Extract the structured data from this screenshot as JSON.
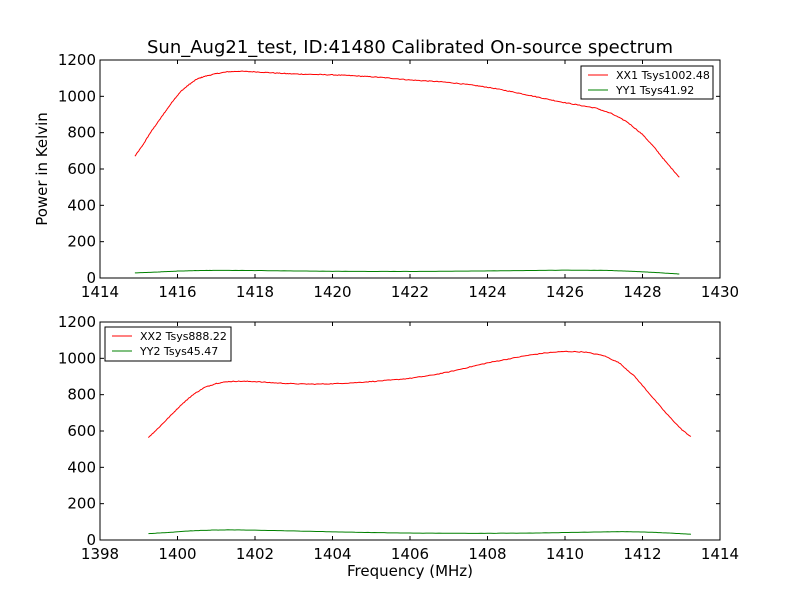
{
  "title": "Sun_Aug21_test, ID:41480 Calibrated On-source spectrum",
  "chart_data": [
    {
      "type": "line",
      "title": "Sun_Aug21_test, ID:41480 Calibrated On-source spectrum",
      "xlabel": "",
      "ylabel": "Power in Kelvin",
      "xlim": [
        1414,
        1430
      ],
      "ylim": [
        0,
        1200
      ],
      "xticks": [
        1414,
        1416,
        1418,
        1420,
        1422,
        1424,
        1426,
        1428,
        1430
      ],
      "yticks": [
        0,
        200,
        400,
        600,
        800,
        1000,
        1200
      ],
      "grid": false,
      "legend": "top-right",
      "series": [
        {
          "name": "XX1 Tsys1002.48",
          "color": "#ff0000",
          "x": [
            1414.9,
            1415.1,
            1415.3,
            1415.5,
            1415.7,
            1415.9,
            1416.1,
            1416.3,
            1416.5,
            1416.7,
            1417.0,
            1417.3,
            1417.6,
            1418.0,
            1418.4,
            1418.8,
            1419.2,
            1419.6,
            1420.0,
            1420.4,
            1420.8,
            1421.2,
            1421.6,
            1422.0,
            1422.4,
            1422.8,
            1423.2,
            1423.6,
            1424.0,
            1424.4,
            1424.8,
            1425.2,
            1425.6,
            1426.0,
            1426.4,
            1426.8,
            1427.2,
            1427.6,
            1428.0,
            1428.3,
            1428.6,
            1428.95
          ],
          "y": [
            670,
            730,
            800,
            860,
            920,
            980,
            1030,
            1065,
            1095,
            1110,
            1125,
            1135,
            1138,
            1135,
            1130,
            1125,
            1122,
            1120,
            1118,
            1115,
            1110,
            1105,
            1098,
            1090,
            1085,
            1080,
            1072,
            1062,
            1050,
            1035,
            1018,
            1000,
            982,
            965,
            950,
            935,
            905,
            860,
            790,
            720,
            640,
            555
          ]
        },
        {
          "name": "YY1 Tsys41.92",
          "color": "#008000",
          "x": [
            1414.9,
            1415.5,
            1416.0,
            1416.5,
            1417.0,
            1418.0,
            1419.0,
            1420.0,
            1421.0,
            1422.0,
            1423.0,
            1424.0,
            1425.0,
            1426.0,
            1427.0,
            1427.5,
            1428.0,
            1428.5,
            1428.95
          ],
          "y": [
            28,
            33,
            38,
            41,
            42,
            41,
            39,
            37,
            36,
            36,
            37,
            39,
            41,
            43,
            42,
            39,
            34,
            28,
            22
          ]
        }
      ]
    },
    {
      "type": "line",
      "title": "",
      "xlabel": "Frequency (MHz)",
      "ylabel": "",
      "xlim": [
        1398,
        1414
      ],
      "ylim": [
        0,
        1200
      ],
      "xticks": [
        1398,
        1400,
        1402,
        1404,
        1406,
        1408,
        1410,
        1412,
        1414
      ],
      "yticks": [
        0,
        200,
        400,
        600,
        800,
        1000,
        1200
      ],
      "grid": false,
      "legend": "top-left",
      "series": [
        {
          "name": "XX2 Tsys888.22",
          "color": "#ff0000",
          "x": [
            1399.25,
            1399.5,
            1399.8,
            1400.1,
            1400.4,
            1400.7,
            1401.0,
            1401.3,
            1401.6,
            1402.0,
            1402.5,
            1403.0,
            1403.5,
            1404.0,
            1404.5,
            1405.0,
            1405.5,
            1406.0,
            1406.5,
            1407.0,
            1407.5,
            1408.0,
            1408.5,
            1409.0,
            1409.5,
            1410.0,
            1410.5,
            1411.0,
            1411.4,
            1411.8,
            1412.2,
            1412.6,
            1413.0,
            1413.25
          ],
          "y": [
            565,
            615,
            680,
            745,
            800,
            840,
            862,
            872,
            874,
            872,
            865,
            860,
            858,
            860,
            865,
            872,
            880,
            890,
            905,
            925,
            950,
            975,
            995,
            1015,
            1030,
            1038,
            1035,
            1015,
            975,
            900,
            800,
            700,
            610,
            568
          ]
        },
        {
          "name": "YY2 Tsys45.47",
          "color": "#008000",
          "x": [
            1399.25,
            1399.8,
            1400.3,
            1400.8,
            1401.3,
            1402.0,
            1403.0,
            1404.0,
            1405.0,
            1406.0,
            1407.0,
            1408.0,
            1409.0,
            1410.0,
            1411.0,
            1411.6,
            1412.2,
            1412.8,
            1413.25
          ],
          "y": [
            35,
            42,
            50,
            54,
            56,
            54,
            50,
            45,
            41,
            38,
            37,
            37,
            38,
            41,
            45,
            46,
            43,
            37,
            32
          ]
        }
      ]
    }
  ]
}
